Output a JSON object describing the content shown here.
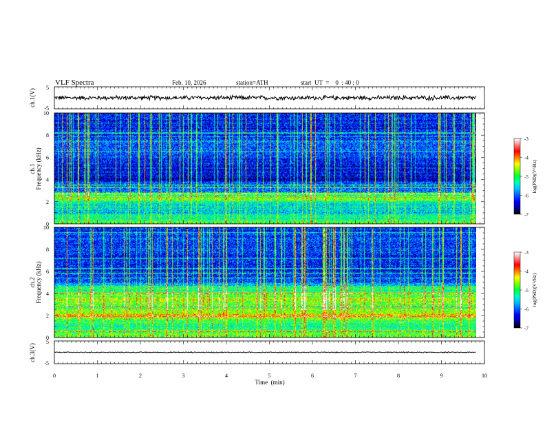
{
  "header": {
    "title": "VLF  Spectra",
    "date": "Feb. 10, 2026",
    "station": "station=ATH",
    "start_time": "start  UT  =    0  : 40 : 0"
  },
  "chart_data": [
    {
      "type": "line",
      "panel": "ch1-waveform",
      "ylabel": "ch.1(V)",
      "ylim": [
        -5,
        5
      ],
      "y_tick_labels": [
        "5",
        "-5"
      ],
      "xlim": [
        0,
        10
      ],
      "x_data_range": [
        0,
        9.8
      ],
      "approx_level_V": 0.0,
      "approx_noise_amplitude_V": 1.2
    },
    {
      "type": "heatmap",
      "panel": "ch1-spectrogram",
      "ylabel": "ch.1\nFrequency  (kHz)",
      "ylim": [
        0,
        10
      ],
      "y_tick_labels": [
        "0",
        "2",
        "4",
        "6",
        "8",
        "10"
      ],
      "xlim": [
        0,
        10
      ],
      "x_data_range": [
        0,
        9.8
      ],
      "colorbar": {
        "label": "log(PSD)(V²/Hz)",
        "range": [
          -7,
          -3
        ],
        "tick_labels": [
          "-3",
          "-4",
          "-5",
          "-6",
          "-7"
        ]
      },
      "approx_profile_logpsd_by_khz": [
        [
          0,
          -4.9
        ],
        [
          0.5,
          -5.2
        ],
        [
          1,
          -5.6
        ],
        [
          1.5,
          -5.4
        ],
        [
          2,
          -5.2
        ],
        [
          2.3,
          -4.6
        ],
        [
          2.5,
          -5.5
        ],
        [
          3,
          -6.0
        ],
        [
          3.5,
          -5.9
        ],
        [
          4,
          -6.5
        ],
        [
          4.5,
          -6.4
        ],
        [
          5,
          -6.4
        ],
        [
          6,
          -6.1
        ],
        [
          7,
          -6.1
        ],
        [
          8,
          -6.2
        ],
        [
          9,
          -6.2
        ],
        [
          10,
          -6.3
        ]
      ]
    },
    {
      "type": "heatmap",
      "panel": "ch2-spectrogram",
      "ylabel": "ch.2\nFrequency  (kHz)",
      "ylim": [
        0,
        10
      ],
      "y_tick_labels": [
        "0",
        "2",
        "4",
        "6",
        "8",
        "10"
      ],
      "xlim": [
        0,
        10
      ],
      "x_data_range": [
        0,
        9.8
      ],
      "colorbar": {
        "label": "log(PSD)(V²/Hz)",
        "range": [
          -7,
          -3
        ],
        "tick_labels": [
          "-3",
          "-4",
          "-5",
          "-6",
          "-7"
        ]
      },
      "approx_profile_logpsd_by_khz": [
        [
          0,
          -4.8
        ],
        [
          0.5,
          -5.0
        ],
        [
          1,
          -5.2
        ],
        [
          1.5,
          -5.1
        ],
        [
          2,
          -4.3
        ],
        [
          2.3,
          -4.6
        ],
        [
          2.7,
          -5.0
        ],
        [
          3,
          -4.9
        ],
        [
          3.5,
          -4.7
        ],
        [
          4,
          -5.0
        ],
        [
          4.5,
          -5.2
        ],
        [
          5,
          -6.0
        ],
        [
          6,
          -6.2
        ],
        [
          7,
          -6.2
        ],
        [
          8,
          -6.2
        ],
        [
          9,
          -6.1
        ],
        [
          10,
          -6.2
        ]
      ]
    },
    {
      "type": "line",
      "panel": "ch3-waveform",
      "ylabel": "ch.3(V)",
      "ylim": [
        -5,
        5
      ],
      "y_tick_labels": [
        "5",
        "-5"
      ],
      "xlim": [
        0,
        10
      ],
      "x_data_range": [
        0,
        9.8
      ],
      "approx_level_V": 0.0,
      "approx_noise_amplitude_V": 0.25
    }
  ],
  "x_axis": {
    "label": "Time  (min)",
    "range": [
      0,
      10
    ],
    "tick_labels": [
      "0",
      "1",
      "2",
      "3",
      "4",
      "5",
      "6",
      "7",
      "8",
      "9",
      "10"
    ]
  },
  "colormap": [
    "#000000",
    "#0000a0",
    "#0000ff",
    "#0060ff",
    "#00c0ff",
    "#00ffc0",
    "#00ff40",
    "#80ff00",
    "#ffff00",
    "#ff8000",
    "#ff0000",
    "#ff8080",
    "#ffffff"
  ]
}
